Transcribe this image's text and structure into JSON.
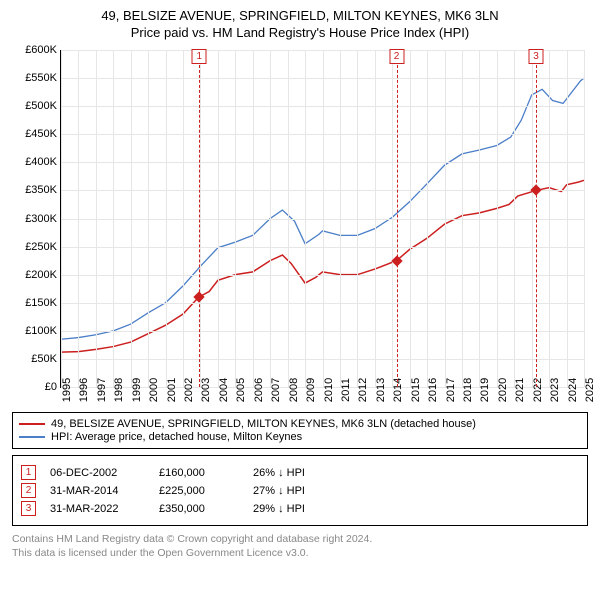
{
  "title": {
    "line1": "49, BELSIZE AVENUE, SPRINGFIELD, MILTON KEYNES, MK6 3LN",
    "line2": "Price paid vs. HM Land Registry's House Price Index (HPI)"
  },
  "chart": {
    "type": "line",
    "background_color": "#ffffff",
    "grid_color": "#e6e6e6",
    "axis_color": "#000000",
    "tick_fontsize": 11,
    "x": {
      "min": 1995,
      "max": 2025,
      "ticks": [
        1995,
        1996,
        1997,
        1998,
        1999,
        2000,
        2001,
        2002,
        2003,
        2004,
        2005,
        2006,
        2007,
        2008,
        2009,
        2010,
        2011,
        2012,
        2013,
        2014,
        2015,
        2016,
        2017,
        2018,
        2019,
        2020,
        2021,
        2022,
        2023,
        2024,
        2025
      ]
    },
    "y": {
      "min": 0,
      "max": 600000,
      "step": 50000,
      "prefix": "£",
      "suffix": "K",
      "divisor": 1000
    },
    "series": [
      {
        "id": "subject",
        "label": "49, BELSIZE AVENUE, SPRINGFIELD, MILTON KEYNES, MK6 3LN (detached house)",
        "color": "#cc1f1f",
        "line_width": 1.5,
        "points": [
          [
            1995,
            62000
          ],
          [
            1996,
            63000
          ],
          [
            1997,
            67000
          ],
          [
            1998,
            72000
          ],
          [
            1999,
            80000
          ],
          [
            2000,
            95000
          ],
          [
            2001,
            110000
          ],
          [
            2002,
            130000
          ],
          [
            2002.9,
            160000
          ],
          [
            2003.5,
            170000
          ],
          [
            2004,
            190000
          ],
          [
            2005,
            200000
          ],
          [
            2006,
            205000
          ],
          [
            2007,
            225000
          ],
          [
            2007.7,
            235000
          ],
          [
            2008.2,
            220000
          ],
          [
            2009,
            185000
          ],
          [
            2009.6,
            195000
          ],
          [
            2010,
            205000
          ],
          [
            2011,
            200000
          ],
          [
            2012,
            200000
          ],
          [
            2013,
            210000
          ],
          [
            2014.25,
            225000
          ],
          [
            2015,
            245000
          ],
          [
            2016,
            265000
          ],
          [
            2017,
            290000
          ],
          [
            2018,
            305000
          ],
          [
            2019,
            310000
          ],
          [
            2020,
            318000
          ],
          [
            2020.7,
            325000
          ],
          [
            2021.2,
            340000
          ],
          [
            2022.25,
            350000
          ],
          [
            2023,
            355000
          ],
          [
            2023.7,
            348000
          ],
          [
            2024,
            360000
          ],
          [
            2024.7,
            365000
          ],
          [
            2025,
            368000
          ]
        ]
      },
      {
        "id": "hpi",
        "label": "HPI: Average price, detached house, Milton Keynes",
        "color": "#4a7ec8",
        "line_width": 1.3,
        "points": [
          [
            1995,
            85000
          ],
          [
            1996,
            88000
          ],
          [
            1997,
            93000
          ],
          [
            1998,
            100000
          ],
          [
            1999,
            112000
          ],
          [
            2000,
            132000
          ],
          [
            2001,
            150000
          ],
          [
            2002,
            180000
          ],
          [
            2003,
            215000
          ],
          [
            2004,
            248000
          ],
          [
            2005,
            258000
          ],
          [
            2006,
            270000
          ],
          [
            2007,
            300000
          ],
          [
            2007.7,
            315000
          ],
          [
            2008.4,
            295000
          ],
          [
            2009,
            255000
          ],
          [
            2009.8,
            272000
          ],
          [
            2010,
            278000
          ],
          [
            2011,
            270000
          ],
          [
            2012,
            270000
          ],
          [
            2013,
            282000
          ],
          [
            2014,
            302000
          ],
          [
            2015,
            330000
          ],
          [
            2016,
            362000
          ],
          [
            2017,
            395000
          ],
          [
            2018,
            415000
          ],
          [
            2019,
            422000
          ],
          [
            2020,
            430000
          ],
          [
            2020.8,
            445000
          ],
          [
            2021.4,
            475000
          ],
          [
            2022,
            520000
          ],
          [
            2022.6,
            530000
          ],
          [
            2023.2,
            510000
          ],
          [
            2023.8,
            505000
          ],
          [
            2024.3,
            525000
          ],
          [
            2024.8,
            545000
          ],
          [
            2025,
            550000
          ]
        ]
      }
    ],
    "markers": [
      {
        "idx": "1",
        "x": 2002.93,
        "y": 160000
      },
      {
        "idx": "2",
        "x": 2014.25,
        "y": 225000
      },
      {
        "idx": "3",
        "x": 2022.25,
        "y": 350000
      }
    ],
    "marker_line_color": "#cc1f1f",
    "marker_box_border": "#cc1f1f"
  },
  "legend": {
    "items": [
      {
        "color": "#cc1f1f",
        "label": "49, BELSIZE AVENUE, SPRINGFIELD, MILTON KEYNES, MK6 3LN (detached house)"
      },
      {
        "color": "#4a7ec8",
        "label": "HPI: Average price, detached house, Milton Keynes"
      }
    ]
  },
  "events": [
    {
      "idx": "1",
      "date": "06-DEC-2002",
      "price": "£160,000",
      "pct": "26% ↓ HPI"
    },
    {
      "idx": "2",
      "date": "31-MAR-2014",
      "price": "£225,000",
      "pct": "27% ↓ HPI"
    },
    {
      "idx": "3",
      "date": "31-MAR-2022",
      "price": "£350,000",
      "pct": "29% ↓ HPI"
    }
  ],
  "attribution": {
    "line1": "Contains HM Land Registry data © Crown copyright and database right 2024.",
    "line2": "This data is licensed under the Open Government Licence v3.0."
  }
}
